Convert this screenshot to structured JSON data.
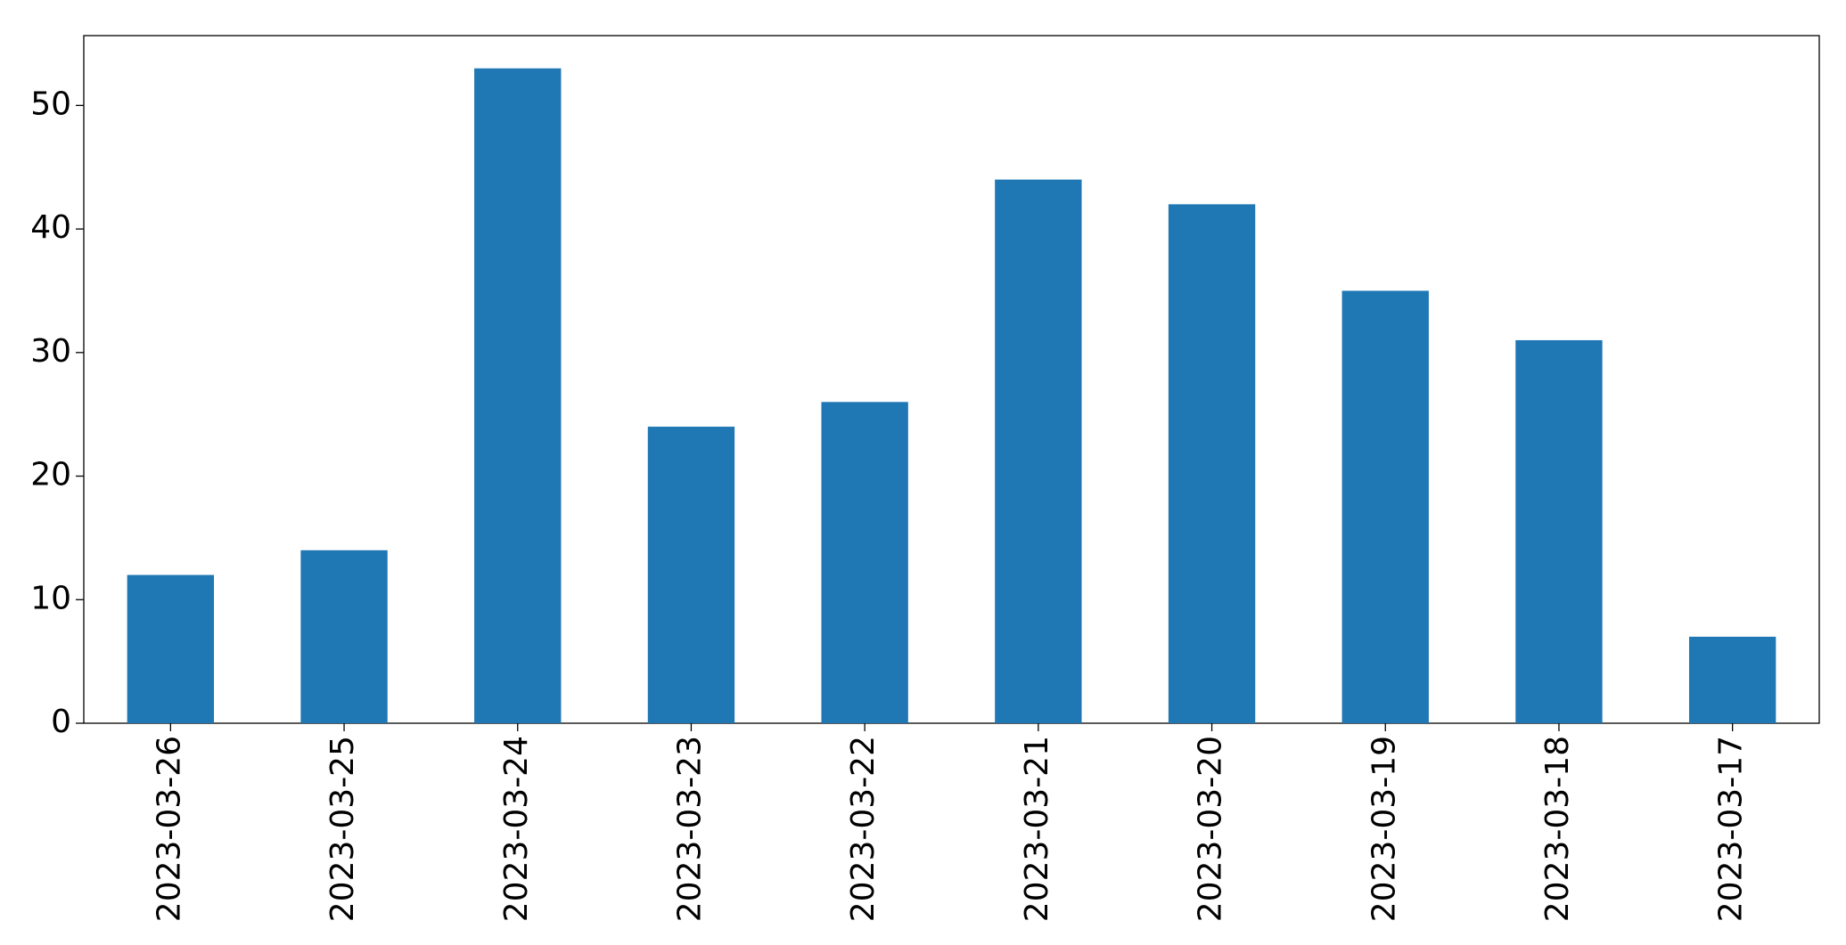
{
  "chart_data": {
    "type": "bar",
    "categories": [
      "2023-03-26",
      "2023-03-25",
      "2023-03-24",
      "2023-03-23",
      "2023-03-22",
      "2023-03-21",
      "2023-03-20",
      "2023-03-19",
      "2023-03-18",
      "2023-03-17"
    ],
    "values": [
      12,
      14,
      53,
      24,
      26,
      44,
      42,
      35,
      31,
      7
    ],
    "color": "#1f77b4",
    "ylim": [
      0,
      55.65
    ],
    "yticks": [
      0,
      10,
      20,
      30,
      40,
      50
    ],
    "grid": false
  }
}
